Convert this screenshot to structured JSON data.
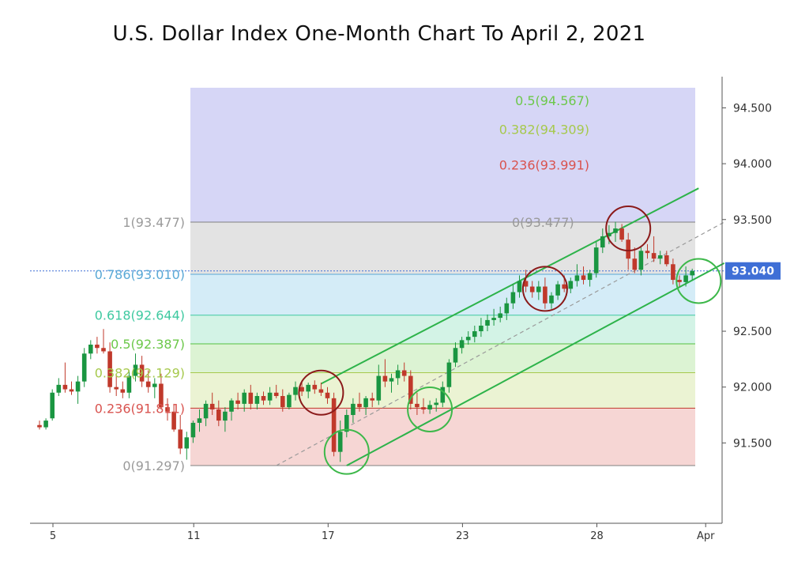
{
  "chart_data": {
    "type": "candlestick",
    "title": "U.S. Dollar Index One-Month Chart To April 2, 2021",
    "xlabel": "",
    "ylabel": "",
    "ylim": [
      90.85,
      94.8
    ],
    "y_ticks": [
      {
        "value": 94.5,
        "label": "94.500"
      },
      {
        "value": 94.0,
        "label": "94.000"
      },
      {
        "value": 93.5,
        "label": "93.500"
      },
      {
        "value": 92.5,
        "label": "92.500"
      },
      {
        "value": 92.0,
        "label": "92.000"
      },
      {
        "value": 91.5,
        "label": "91.500"
      }
    ],
    "x_ticks": [
      {
        "index": 0,
        "label": "5"
      },
      {
        "index": 22,
        "label": "11"
      },
      {
        "index": 43,
        "label": "17"
      },
      {
        "index": 64,
        "label": "23"
      },
      {
        "index": 85,
        "label": "28"
      },
      {
        "index": 102,
        "label": "Apr"
      }
    ],
    "current_price": {
      "value": 93.04,
      "label": "93.040"
    },
    "fib_retracement": [
      {
        "level": "1",
        "value": 93.477,
        "label": "1(93.477)",
        "color": "#9a9a9a"
      },
      {
        "level": "0.786",
        "value": 93.01,
        "label": "0.786(93.010)",
        "color": "#5aa9d6"
      },
      {
        "level": "0.618",
        "value": 92.644,
        "label": "0.618(92.644)",
        "color": "#3ec9a0"
      },
      {
        "level": "0.5",
        "value": 92.387,
        "label": "0.5(92.387)",
        "color": "#6cc84a"
      },
      {
        "level": "0.382",
        "value": 92.129,
        "label": "0.382(92.129)",
        "color": "#a6c94c"
      },
      {
        "level": "0.236",
        "value": 91.811,
        "label": "0.236(91.811)",
        "color": "#d9534f"
      },
      {
        "level": "0",
        "value": 91.297,
        "label": "0(91.297)",
        "color": "#9a9a9a"
      }
    ],
    "fib_extension": [
      {
        "level": "0",
        "value": 93.477,
        "label": "0(93.477)",
        "color": "#9a9a9a"
      },
      {
        "level": "0.236",
        "value": 93.991,
        "label": "0.236(93.991)",
        "color": "#d9534f"
      },
      {
        "level": "0.382",
        "value": 94.309,
        "label": "0.382(94.309)",
        "color": "#a6c94c"
      },
      {
        "level": "0.5",
        "value": 94.567,
        "label": "0.5(94.567)",
        "color": "#6cc84a"
      }
    ],
    "candles": [
      [
        91.66,
        91.7,
        91.62,
        91.64
      ],
      [
        91.64,
        91.72,
        91.62,
        91.7
      ],
      [
        91.72,
        91.98,
        91.7,
        91.95
      ],
      [
        91.95,
        92.08,
        91.92,
        92.02
      ],
      [
        92.02,
        92.22,
        91.95,
        91.98
      ],
      [
        91.98,
        92.05,
        91.93,
        91.96
      ],
      [
        91.96,
        92.1,
        91.85,
        92.05
      ],
      [
        92.05,
        92.35,
        92.0,
        92.3
      ],
      [
        92.3,
        92.42,
        92.25,
        92.38
      ],
      [
        92.38,
        92.45,
        92.3,
        92.35
      ],
      [
        92.35,
        92.52,
        92.3,
        92.32
      ],
      [
        92.32,
        92.4,
        91.95,
        92.0
      ],
      [
        92.0,
        92.1,
        91.92,
        91.98
      ],
      [
        91.98,
        92.05,
        91.9,
        91.95
      ],
      [
        91.95,
        92.15,
        91.9,
        92.1
      ],
      [
        92.1,
        92.3,
        92.05,
        92.2
      ],
      [
        92.2,
        92.28,
        92.0,
        92.05
      ],
      [
        92.05,
        92.15,
        91.95,
        92.0
      ],
      [
        92.0,
        92.08,
        91.9,
        92.03
      ],
      [
        92.03,
        92.12,
        91.8,
        91.82
      ],
      [
        91.82,
        91.9,
        91.7,
        91.78
      ],
      [
        91.78,
        91.85,
        91.6,
        91.62
      ],
      [
        91.62,
        91.75,
        91.4,
        91.45
      ],
      [
        91.45,
        91.6,
        91.35,
        91.55
      ],
      [
        91.55,
        91.7,
        91.5,
        91.68
      ],
      [
        91.68,
        91.8,
        91.6,
        91.72
      ],
      [
        91.72,
        91.88,
        91.65,
        91.85
      ],
      [
        91.85,
        91.95,
        91.75,
        91.8
      ],
      [
        91.8,
        91.88,
        91.65,
        91.7
      ],
      [
        91.7,
        91.82,
        91.6,
        91.78
      ],
      [
        91.78,
        91.9,
        91.7,
        91.88
      ],
      [
        91.88,
        91.95,
        91.8,
        91.85
      ],
      [
        91.85,
        91.98,
        91.78,
        91.95
      ],
      [
        91.95,
        92.02,
        91.8,
        91.85
      ],
      [
        91.85,
        91.95,
        91.8,
        91.92
      ],
      [
        91.92,
        91.96,
        91.84,
        91.88
      ],
      [
        91.88,
        92.0,
        91.84,
        91.95
      ],
      [
        91.95,
        92.02,
        91.9,
        91.92
      ],
      [
        91.92,
        91.98,
        91.78,
        91.82
      ],
      [
        91.82,
        91.95,
        91.8,
        91.93
      ],
      [
        91.93,
        92.05,
        91.88,
        92.0
      ],
      [
        92.0,
        92.06,
        91.92,
        91.96
      ],
      [
        91.96,
        92.04,
        91.9,
        92.02
      ],
      [
        92.02,
        92.06,
        91.94,
        91.98
      ],
      [
        91.98,
        92.04,
        91.92,
        91.95
      ],
      [
        91.95,
        92.0,
        91.85,
        91.9
      ],
      [
        91.9,
        91.95,
        91.38,
        91.42
      ],
      [
        91.42,
        91.7,
        91.33,
        91.6
      ],
      [
        91.6,
        91.8,
        91.55,
        91.75
      ],
      [
        91.75,
        91.9,
        91.68,
        91.85
      ],
      [
        91.85,
        91.95,
        91.78,
        91.82
      ],
      [
        91.82,
        91.92,
        91.75,
        91.9
      ],
      [
        91.9,
        91.95,
        91.82,
        91.88
      ],
      [
        91.88,
        92.2,
        91.84,
        92.1
      ],
      [
        92.1,
        92.25,
        92.0,
        92.05
      ],
      [
        92.05,
        92.12,
        91.95,
        92.08
      ],
      [
        92.08,
        92.2,
        92.02,
        92.15
      ],
      [
        92.15,
        92.22,
        92.05,
        92.1
      ],
      [
        92.1,
        92.15,
        91.8,
        91.85
      ],
      [
        91.85,
        91.95,
        91.75,
        91.82
      ],
      [
        91.82,
        91.9,
        91.76,
        91.8
      ],
      [
        91.8,
        91.88,
        91.76,
        91.84
      ],
      [
        91.84,
        91.9,
        91.78,
        91.86
      ],
      [
        91.86,
        92.05,
        91.82,
        92.0
      ],
      [
        92.0,
        92.25,
        91.95,
        92.22
      ],
      [
        92.22,
        92.4,
        92.18,
        92.35
      ],
      [
        92.35,
        92.45,
        92.3,
        92.42
      ],
      [
        92.42,
        92.5,
        92.38,
        92.45
      ],
      [
        92.45,
        92.55,
        92.4,
        92.5
      ],
      [
        92.5,
        92.62,
        92.45,
        92.55
      ],
      [
        92.55,
        92.65,
        92.5,
        92.6
      ],
      [
        92.6,
        92.7,
        92.55,
        92.62
      ],
      [
        92.62,
        92.72,
        92.58,
        92.66
      ],
      [
        92.66,
        92.8,
        92.6,
        92.75
      ],
      [
        92.75,
        92.92,
        92.7,
        92.85
      ],
      [
        92.85,
        93.0,
        92.8,
        92.95
      ],
      [
        92.95,
        93.05,
        92.85,
        92.9
      ],
      [
        92.9,
        92.95,
        92.8,
        92.85
      ],
      [
        92.85,
        92.95,
        92.78,
        92.9
      ],
      [
        92.9,
        92.98,
        92.7,
        92.75
      ],
      [
        92.75,
        92.85,
        92.7,
        92.82
      ],
      [
        92.82,
        92.95,
        92.78,
        92.92
      ],
      [
        92.92,
        93.0,
        92.85,
        92.88
      ],
      [
        92.88,
        92.98,
        92.84,
        92.95
      ],
      [
        92.95,
        93.1,
        92.9,
        93.0
      ],
      [
        93.0,
        93.08,
        92.92,
        92.96
      ],
      [
        92.96,
        93.05,
        92.9,
        93.02
      ],
      [
        93.02,
        93.3,
        92.98,
        93.25
      ],
      [
        93.25,
        93.42,
        93.2,
        93.35
      ],
      [
        93.35,
        93.45,
        93.28,
        93.38
      ],
      [
        93.38,
        93.48,
        93.3,
        93.42
      ],
      [
        93.42,
        93.46,
        93.3,
        93.32
      ],
      [
        93.32,
        93.38,
        93.05,
        93.15
      ],
      [
        93.15,
        93.25,
        93.02,
        93.05
      ],
      [
        93.05,
        93.25,
        93.0,
        93.22
      ],
      [
        93.22,
        93.28,
        93.15,
        93.2
      ],
      [
        93.2,
        93.35,
        93.12,
        93.15
      ],
      [
        93.15,
        93.22,
        93.1,
        93.18
      ],
      [
        93.18,
        93.22,
        93.08,
        93.1
      ],
      [
        93.1,
        93.15,
        92.92,
        92.96
      ],
      [
        92.96,
        93.0,
        92.9,
        92.94
      ],
      [
        92.94,
        93.08,
        92.9,
        93.0
      ],
      [
        93.0,
        93.06,
        92.96,
        93.04
      ]
    ],
    "trend_channel": {
      "lower": [
        [
          48,
          91.297
        ],
        [
          107,
          93.11
        ]
      ],
      "upper": [
        [
          44,
          92.03
        ],
        [
          103,
          93.78
        ]
      ],
      "midline": [
        [
          37,
          91.297
        ],
        [
          107,
          93.477
        ]
      ]
    },
    "circles": [
      {
        "index": 44,
        "value": 91.95,
        "color": "#8b1a1a"
      },
      {
        "index": 48,
        "value": 91.42,
        "color": "#3db84a"
      },
      {
        "index": 61,
        "value": 91.8,
        "color": "#3db84a"
      },
      {
        "index": 79,
        "value": 92.88,
        "color": "#8b1a1a"
      },
      {
        "index": 92,
        "value": 93.42,
        "color": "#8b1a1a"
      },
      {
        "index": 103,
        "value": 92.95,
        "color": "#3db84a"
      }
    ],
    "colors": {
      "up": "#1a9641",
      "down": "#c0392b",
      "channel": "#2db34a",
      "price_label_bg": "#3f6fd6"
    }
  }
}
